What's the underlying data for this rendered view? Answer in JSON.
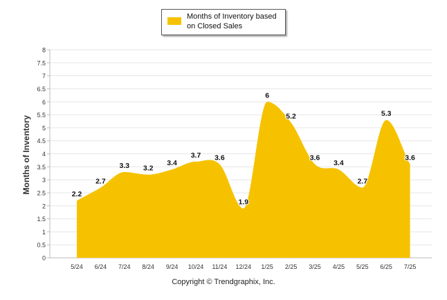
{
  "chart_data": {
    "type": "area",
    "categories": [
      "5/24",
      "6/24",
      "7/24",
      "8/24",
      "9/24",
      "10/24",
      "11/24",
      "12/24",
      "1/25",
      "2/25",
      "3/25",
      "4/25",
      "5/25",
      "6/25",
      "7/25"
    ],
    "series": [
      {
        "name": "Months of Inventory based on Closed Sales",
        "values": [
          2.2,
          2.7,
          3.3,
          3.2,
          3.4,
          3.7,
          3.6,
          1.9,
          6,
          5.2,
          3.6,
          3.4,
          2.7,
          5.3,
          3.6
        ]
      }
    ],
    "data_labels": [
      "2.2",
      "2.7",
      "3.3",
      "3.2",
      "3.4",
      "3.7",
      "3.6",
      "1.9",
      "6",
      "5.2",
      "3.6",
      "3.4",
      "2.7",
      "5.3",
      "3.6"
    ],
    "ylabel": "Months of Inventory",
    "xlabel": "",
    "ylim": [
      0,
      8
    ],
    "yticks": [
      "0",
      "0.5",
      "1",
      "1.5",
      "2",
      "2.5",
      "3",
      "3.5",
      "4",
      "4.5",
      "5",
      "5.5",
      "6",
      "6.5",
      "7",
      "7.5",
      "8"
    ],
    "grid": true,
    "legend_position": "top-center",
    "fill_color": "#f6c200"
  },
  "legend": {
    "label": "Months of Inventory based on Closed Sales"
  },
  "footer": {
    "copyright": "Copyright © Trendgraphix, Inc."
  }
}
